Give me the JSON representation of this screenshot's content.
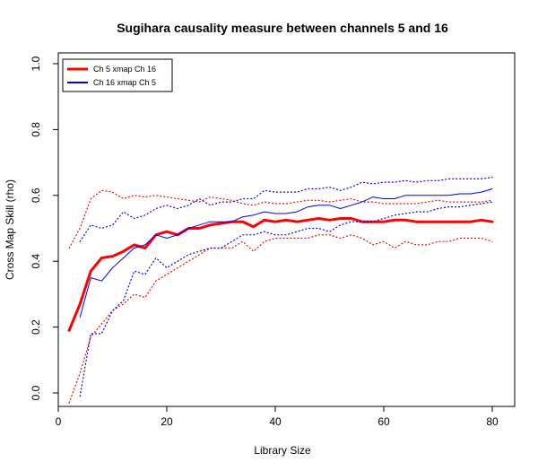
{
  "chart_data": {
    "type": "line",
    "title": "Sugihara causality measure between channels  5 and 16",
    "xlabel": "Library Size",
    "ylabel": "Cross Map Skill (rho)",
    "xlim": [
      2,
      80
    ],
    "ylim": [
      0,
      1
    ],
    "xticks": [
      0,
      20,
      40,
      60,
      80
    ],
    "xtick_labels": [
      "0",
      "20",
      "40",
      "60",
      "80"
    ],
    "yticks": [
      0,
      0.2,
      0.4,
      0.6,
      0.8,
      1.0
    ],
    "ytick_labels": [
      "0.0",
      "0.2",
      "0.4",
      "0.6",
      "0.8",
      "1.0"
    ],
    "grid": false,
    "legend_position": "top-left",
    "series": [
      {
        "name": "Ch 5 xmap Ch 16",
        "color": "#ff0000",
        "style": "solid-thick",
        "x": [
          2,
          4,
          6,
          8,
          10,
          12,
          14,
          16,
          18,
          20,
          22,
          24,
          26,
          28,
          30,
          32,
          34,
          36,
          38,
          40,
          42,
          44,
          46,
          48,
          50,
          52,
          54,
          56,
          58,
          60,
          62,
          64,
          66,
          68,
          70,
          72,
          74,
          76,
          78,
          80
        ],
        "y": [
          0.19,
          0.27,
          0.37,
          0.41,
          0.415,
          0.43,
          0.45,
          0.44,
          0.48,
          0.49,
          0.48,
          0.5,
          0.5,
          0.51,
          0.515,
          0.52,
          0.52,
          0.505,
          0.525,
          0.52,
          0.525,
          0.52,
          0.525,
          0.53,
          0.525,
          0.53,
          0.53,
          0.52,
          0.52,
          0.52,
          0.525,
          0.525,
          0.52,
          0.52,
          0.52,
          0.52,
          0.52,
          0.52,
          0.525,
          0.52
        ]
      },
      {
        "name": "Ch 16  xmap Ch 5",
        "color": "#0000ff",
        "style": "solid-thin",
        "x": [
          4,
          6,
          8,
          10,
          12,
          14,
          16,
          18,
          20,
          22,
          24,
          26,
          28,
          30,
          32,
          34,
          36,
          38,
          40,
          42,
          44,
          46,
          48,
          50,
          52,
          54,
          56,
          58,
          60,
          62,
          64,
          66,
          68,
          70,
          72,
          74,
          76,
          78,
          80
        ],
        "y": [
          0.23,
          0.35,
          0.34,
          0.38,
          0.41,
          0.44,
          0.45,
          0.48,
          0.47,
          0.48,
          0.5,
          0.51,
          0.52,
          0.52,
          0.52,
          0.535,
          0.54,
          0.55,
          0.545,
          0.545,
          0.55,
          0.565,
          0.57,
          0.57,
          0.56,
          0.57,
          0.58,
          0.595,
          0.59,
          0.59,
          0.6,
          0.6,
          0.6,
          0.6,
          0.6,
          0.605,
          0.605,
          0.61,
          0.62
        ]
      },
      {
        "name": "",
        "color": "#ff0000",
        "style": "dotted",
        "x": [
          2,
          4,
          6,
          8,
          10,
          12,
          14,
          16,
          18,
          20,
          22,
          24,
          26,
          28,
          30,
          32,
          34,
          36,
          38,
          40,
          42,
          44,
          46,
          48,
          50,
          52,
          54,
          56,
          58,
          60,
          62,
          64,
          66,
          68,
          70,
          72,
          74,
          76,
          78,
          80
        ],
        "y": [
          0.44,
          0.5,
          0.59,
          0.615,
          0.61,
          0.59,
          0.6,
          0.595,
          0.6,
          0.595,
          0.59,
          0.585,
          0.58,
          0.595,
          0.59,
          0.585,
          0.575,
          0.57,
          0.58,
          0.575,
          0.575,
          0.58,
          0.585,
          0.585,
          0.58,
          0.585,
          0.59,
          0.58,
          0.58,
          0.575,
          0.575,
          0.575,
          0.575,
          0.58,
          0.585,
          0.58,
          0.58,
          0.58,
          0.58,
          0.585
        ]
      },
      {
        "name": "",
        "color": "#ff0000",
        "style": "dotted",
        "x": [
          2,
          4,
          6,
          8,
          10,
          12,
          14,
          16,
          18,
          20,
          22,
          24,
          26,
          28,
          30,
          32,
          34,
          36,
          38,
          40,
          42,
          44,
          46,
          48,
          50,
          52,
          54,
          56,
          58,
          60,
          62,
          64,
          66,
          68,
          70,
          72,
          74,
          76,
          78,
          80
        ],
        "y": [
          -0.03,
          0.06,
          0.17,
          0.21,
          0.25,
          0.27,
          0.3,
          0.29,
          0.34,
          0.36,
          0.38,
          0.4,
          0.42,
          0.44,
          0.44,
          0.44,
          0.46,
          0.43,
          0.46,
          0.47,
          0.47,
          0.47,
          0.47,
          0.48,
          0.48,
          0.47,
          0.48,
          0.47,
          0.45,
          0.46,
          0.44,
          0.46,
          0.45,
          0.45,
          0.46,
          0.46,
          0.47,
          0.47,
          0.47,
          0.46
        ]
      },
      {
        "name": "",
        "color": "#0000ff",
        "style": "dotted",
        "x": [
          4,
          6,
          8,
          10,
          12,
          14,
          16,
          18,
          20,
          22,
          24,
          26,
          28,
          30,
          32,
          34,
          36,
          38,
          40,
          42,
          44,
          46,
          48,
          50,
          52,
          54,
          56,
          58,
          60,
          62,
          64,
          66,
          68,
          70,
          72,
          74,
          76,
          78,
          80
        ],
        "y": [
          0.46,
          0.51,
          0.5,
          0.51,
          0.55,
          0.53,
          0.54,
          0.56,
          0.57,
          0.56,
          0.57,
          0.59,
          0.57,
          0.58,
          0.58,
          0.59,
          0.59,
          0.615,
          0.61,
          0.61,
          0.61,
          0.62,
          0.62,
          0.625,
          0.615,
          0.625,
          0.64,
          0.635,
          0.64,
          0.64,
          0.645,
          0.64,
          0.645,
          0.645,
          0.65,
          0.65,
          0.65,
          0.65,
          0.655
        ]
      },
      {
        "name": "",
        "color": "#0000ff",
        "style": "dotted",
        "x": [
          4,
          6,
          8,
          10,
          12,
          14,
          16,
          18,
          20,
          22,
          24,
          26,
          28,
          30,
          32,
          34,
          36,
          38,
          40,
          42,
          44,
          46,
          48,
          50,
          52,
          54,
          56,
          58,
          60,
          62,
          64,
          66,
          68,
          70,
          72,
          74,
          76,
          78,
          80
        ],
        "y": [
          -0.01,
          0.18,
          0.18,
          0.25,
          0.28,
          0.37,
          0.36,
          0.41,
          0.38,
          0.4,
          0.42,
          0.43,
          0.44,
          0.44,
          0.46,
          0.48,
          0.48,
          0.49,
          0.48,
          0.48,
          0.49,
          0.5,
          0.5,
          0.49,
          0.51,
          0.52,
          0.52,
          0.52,
          0.53,
          0.54,
          0.545,
          0.55,
          0.55,
          0.56,
          0.565,
          0.565,
          0.57,
          0.575,
          0.58
        ]
      }
    ]
  }
}
